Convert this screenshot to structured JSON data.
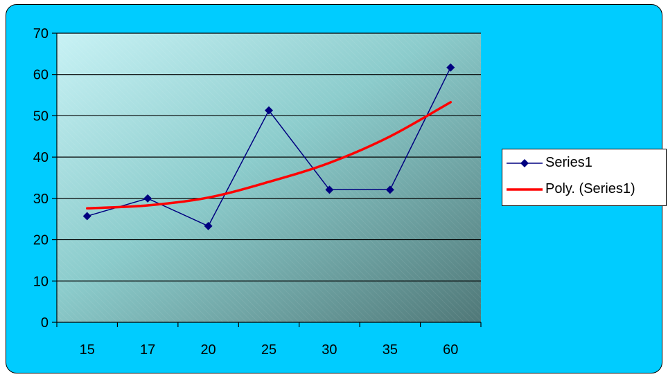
{
  "chart_data": {
    "type": "line",
    "categories": [
      "15",
      "17",
      "20",
      "25",
      "30",
      "35",
      "60"
    ],
    "series": [
      {
        "name": "Series1",
        "values": [
          25.7,
          30.0,
          23.3,
          51.3,
          32.1,
          32.1,
          61.7
        ],
        "color": "#000080",
        "marker": "diamond"
      }
    ],
    "trendline": {
      "name": "Poly. (Series1)",
      "type": "polynomial",
      "values": [
        27.6,
        28.3,
        30.2,
        34.0,
        38.6,
        45.0,
        53.3
      ],
      "color": "#ff0000"
    },
    "ylim": [
      0,
      70
    ],
    "yticks": [
      0,
      10,
      20,
      30,
      40,
      50,
      60,
      70
    ],
    "grid": "horizontal",
    "legend_position": "right",
    "plot_background": "gradient teal",
    "frame_color": "#00ccff"
  }
}
